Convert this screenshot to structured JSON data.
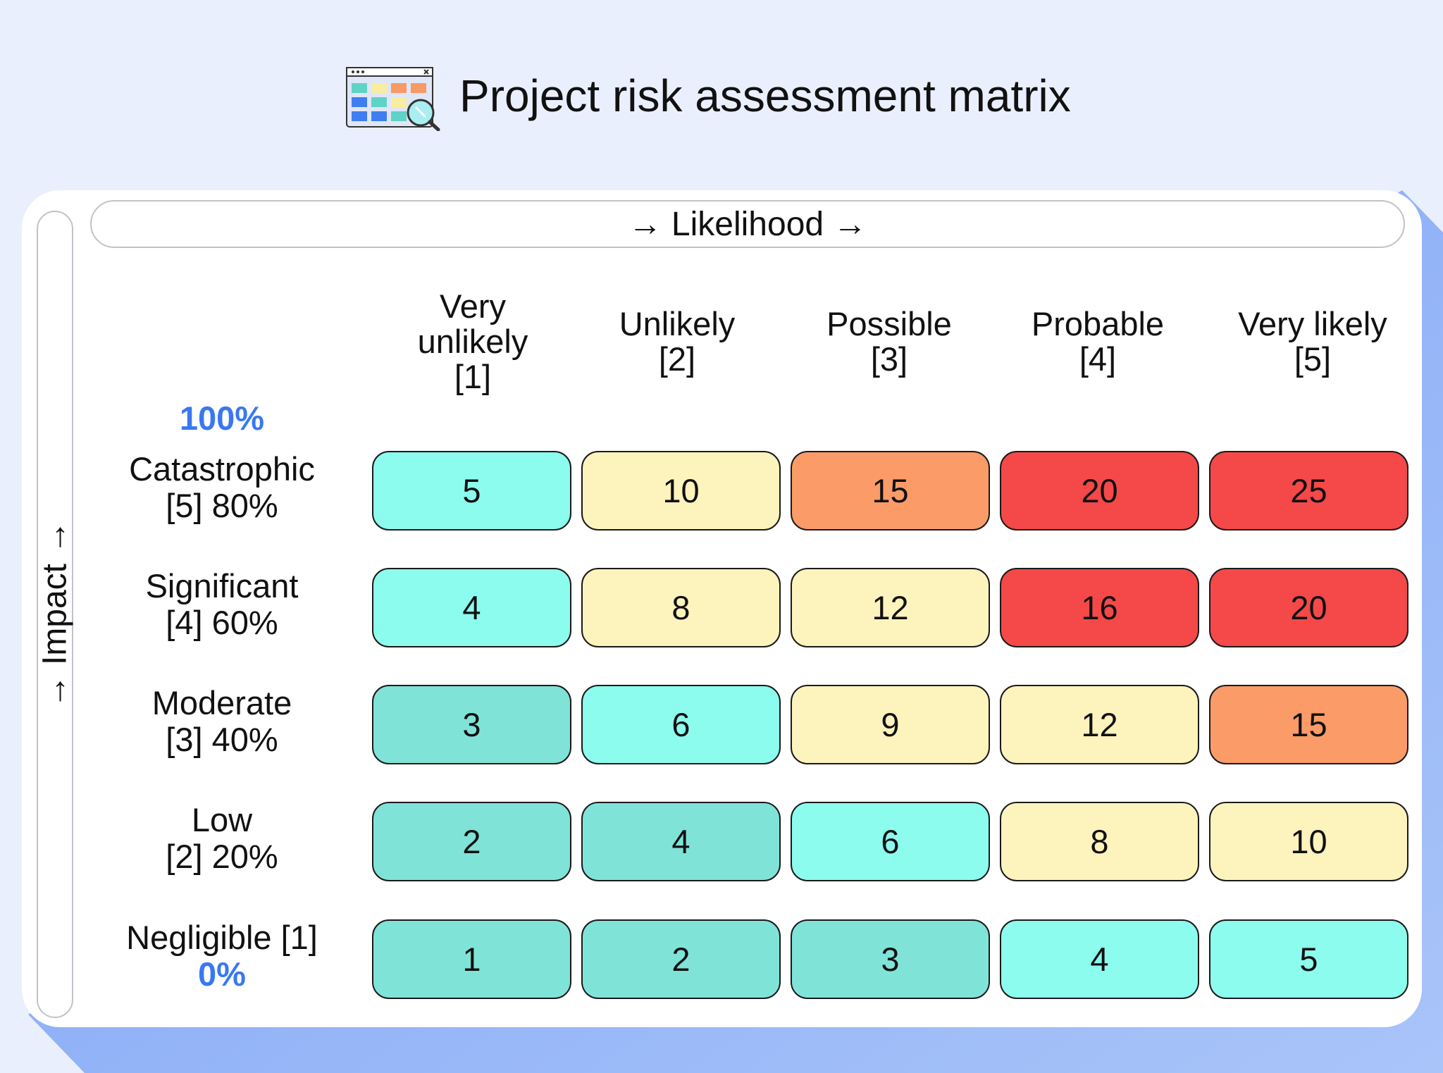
{
  "title": "Project risk assessment matrix",
  "icon": "spreadsheet-search-icon",
  "x_axis_label": "→ Likelihood →",
  "y_axis_label": "→ Impact →",
  "top_percent": "100%",
  "bottom_percent": "0%",
  "columns": [
    {
      "lines": [
        "Very",
        "unlikely",
        "[1]"
      ]
    },
    {
      "lines": [
        "Unlikely",
        "[2]"
      ]
    },
    {
      "lines": [
        "Possible",
        "[3]"
      ]
    },
    {
      "lines": [
        "Probable",
        "[4]"
      ]
    },
    {
      "lines": [
        "Very likely",
        "[5]"
      ]
    }
  ],
  "rows": [
    {
      "lines": [
        "Catastrophic",
        "[5] 80%"
      ],
      "scores": [
        "5",
        "10",
        "15",
        "20",
        "25"
      ],
      "levels": [
        "cyan",
        "yellow",
        "orange",
        "red",
        "red"
      ]
    },
    {
      "lines": [
        "Significant",
        "[4] 60%"
      ],
      "scores": [
        "4",
        "8",
        "12",
        "16",
        "20"
      ],
      "levels": [
        "cyan",
        "yellow",
        "yellow",
        "red",
        "red"
      ]
    },
    {
      "lines": [
        "Moderate",
        "[3] 40%"
      ],
      "scores": [
        "3",
        "6",
        "9",
        "12",
        "15"
      ],
      "levels": [
        "teal",
        "cyan",
        "yellow",
        "yellow",
        "orange"
      ]
    },
    {
      "lines": [
        "Low",
        "[2] 20%"
      ],
      "scores": [
        "2",
        "4",
        "6",
        "8",
        "10"
      ],
      "levels": [
        "teal",
        "teal",
        "cyan",
        "yellow",
        "yellow"
      ]
    },
    {
      "lines": [
        "Negligible [1]"
      ],
      "scores": [
        "1",
        "2",
        "3",
        "4",
        "5"
      ],
      "levels": [
        "teal",
        "teal",
        "teal",
        "cyan",
        "cyan"
      ]
    }
  ],
  "colors": {
    "teal": "#80e3d8",
    "cyan": "#8cfcef",
    "yellow": "#fdf3bd",
    "orange": "#fb9b68",
    "red": "#f54848",
    "accent_blue": "#3a78f0",
    "background": "#eaeffd"
  }
}
